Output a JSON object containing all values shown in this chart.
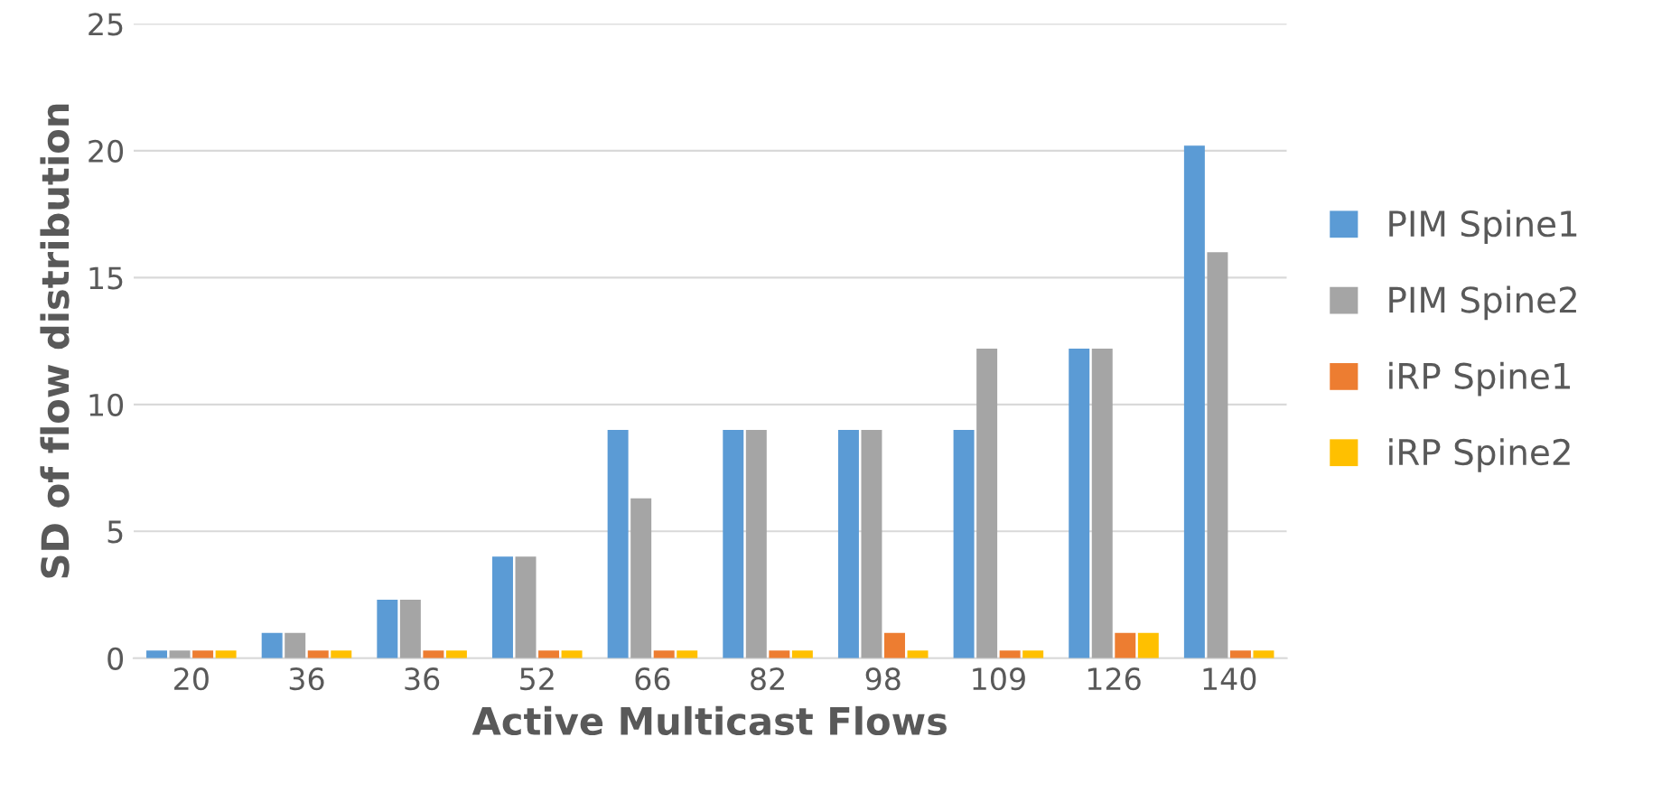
{
  "chart_data": {
    "type": "bar",
    "xlabel": "Active Multicast Flows",
    "ylabel": "SD of flow distribution",
    "categories": [
      "20",
      "36",
      "36",
      "52",
      "66",
      "82",
      "98",
      "109",
      "126",
      "140"
    ],
    "series": [
      {
        "name": "PIM Spine1",
        "color": "#5b9bd5",
        "values": [
          0.3,
          1.0,
          2.3,
          4.0,
          9.0,
          9.0,
          9.0,
          9.0,
          12.2,
          20.2
        ]
      },
      {
        "name": "PIM Spine2",
        "color": "#a5a5a5",
        "values": [
          0.3,
          1.0,
          2.3,
          4.0,
          6.3,
          9.0,
          9.0,
          12.2,
          12.2,
          16.0
        ]
      },
      {
        "name": "iRP Spine1",
        "color": "#ed7d31",
        "values": [
          0.3,
          0.3,
          0.3,
          0.3,
          0.3,
          0.3,
          1.0,
          0.3,
          1.0,
          0.3
        ]
      },
      {
        "name": "iRP Spine2",
        "color": "#ffc000",
        "values": [
          0.3,
          0.3,
          0.3,
          0.3,
          0.3,
          0.3,
          0.3,
          0.3,
          1.0,
          0.3
        ]
      }
    ],
    "ylim": [
      0,
      25
    ],
    "yticks": [
      0,
      5,
      10,
      15,
      20,
      25
    ],
    "grid": "y",
    "legend": "right"
  }
}
